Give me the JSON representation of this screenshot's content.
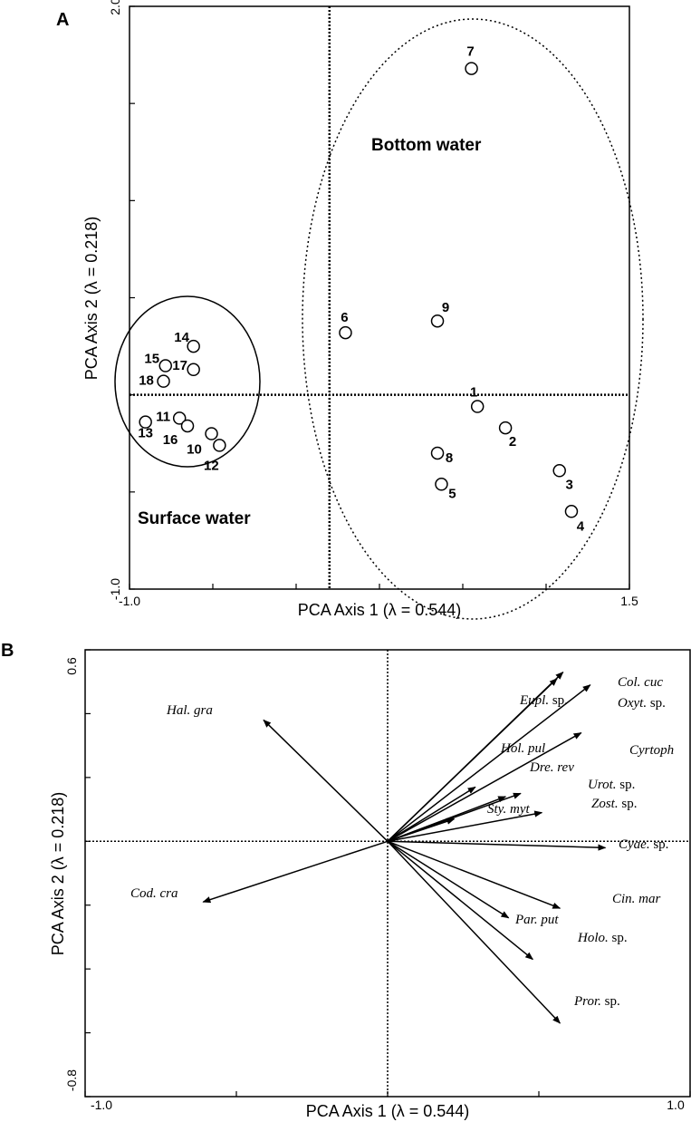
{
  "chart_data": [
    {
      "panel": "A",
      "type": "scatter",
      "xlabel": "PCA Axis 1 (λ = 0.544)",
      "ylabel": "PCA Axis 2 (λ = 0.218)",
      "xlim": [
        -1.0,
        1.5
      ],
      "ylim": [
        -1.0,
        2.0
      ],
      "x_tick_labels": [
        {
          "value": -1.0,
          "label": "-1.0"
        },
        {
          "value": 1.5,
          "label": "1.5"
        }
      ],
      "y_tick_labels": [
        {
          "value": 2.0,
          "label": "2.0"
        },
        {
          "value": -1.0,
          "label": "-1.0"
        }
      ],
      "points": [
        {
          "label": "1",
          "x": 0.74,
          "y": -0.06
        },
        {
          "label": "2",
          "x": 0.88,
          "y": -0.17
        },
        {
          "label": "3",
          "x": 1.15,
          "y": -0.39
        },
        {
          "label": "4",
          "x": 1.21,
          "y": -0.6
        },
        {
          "label": "5",
          "x": 0.56,
          "y": -0.46
        },
        {
          "label": "6",
          "x": 0.08,
          "y": 0.32
        },
        {
          "label": "7",
          "x": 0.71,
          "y": 1.68
        },
        {
          "label": "8",
          "x": 0.54,
          "y": -0.3
        },
        {
          "label": "9",
          "x": 0.54,
          "y": 0.38
        },
        {
          "label": "10",
          "x": -0.59,
          "y": -0.2
        },
        {
          "label": "11",
          "x": -0.75,
          "y": -0.12
        },
        {
          "label": "12",
          "x": -0.55,
          "y": -0.26
        },
        {
          "label": "13",
          "x": -0.92,
          "y": -0.14
        },
        {
          "label": "14",
          "x": -0.68,
          "y": 0.25
        },
        {
          "label": "15",
          "x": -0.82,
          "y": 0.15
        },
        {
          "label": "16",
          "x": -0.71,
          "y": -0.16
        },
        {
          "label": "17",
          "x": -0.68,
          "y": 0.13
        },
        {
          "label": "18",
          "x": -0.83,
          "y": 0.07
        }
      ],
      "groups": [
        {
          "label": "Bottom water",
          "members": [
            "1",
            "2",
            "3",
            "4",
            "5",
            "6",
            "7",
            "8",
            "9"
          ],
          "outline": "dotted ellipse"
        },
        {
          "label": "Surface water",
          "members": [
            "10",
            "11",
            "12",
            "13",
            "14",
            "15",
            "16",
            "17",
            "18"
          ],
          "outline": "solid ellipse"
        }
      ]
    },
    {
      "panel": "B",
      "type": "biplot",
      "xlabel": "PCA Axis 1 (λ = 0.544)",
      "ylabel": "PCA Axis 2 (λ = 0.218)",
      "xlim": [
        -1.0,
        1.0
      ],
      "ylim": [
        -0.8,
        0.6
      ],
      "x_tick_labels": [
        {
          "value": -1.0,
          "label": "-1.0"
        },
        {
          "value": 1.0,
          "label": "1.0"
        }
      ],
      "y_tick_labels": [
        {
          "value": 0.6,
          "label": "0.6"
        },
        {
          "value": -0.8,
          "label": "-0.8"
        }
      ],
      "vectors": [
        {
          "genus": "Col. cuc",
          "suffix": "",
          "x": 0.58,
          "y": 0.53
        },
        {
          "genus": "Oxyt.",
          "suffix": " sp.",
          "x": 0.67,
          "y": 0.49
        },
        {
          "genus": "Eupl.",
          "suffix": " sp.",
          "x": 0.56,
          "y": 0.51
        },
        {
          "genus": "Cyrtoph",
          "suffix": "",
          "x": 0.64,
          "y": 0.34
        },
        {
          "genus": "Hol. pul",
          "suffix": "",
          "x": 0.29,
          "y": 0.17
        },
        {
          "genus": "Dre. rev",
          "suffix": "",
          "x": 0.39,
          "y": 0.14
        },
        {
          "genus": "Urot.",
          "suffix": " sp.",
          "x": 0.44,
          "y": 0.15
        },
        {
          "genus": "Zost.",
          "suffix": " sp.",
          "x": 0.51,
          "y": 0.09
        },
        {
          "genus": "Sty. myt",
          "suffix": "",
          "x": 0.22,
          "y": 0.07
        },
        {
          "genus": "Cyae.",
          "suffix": " sp.",
          "x": 0.72,
          "y": -0.02
        },
        {
          "genus": "Cin. mar",
          "suffix": "",
          "x": 0.57,
          "y": -0.21
        },
        {
          "genus": "Par. put",
          "suffix": "",
          "x": 0.4,
          "y": -0.24
        },
        {
          "genus": "Holo.",
          "suffix": " sp.",
          "x": 0.48,
          "y": -0.37
        },
        {
          "genus": "Pror.",
          "suffix": " sp.",
          "x": 0.57,
          "y": -0.57
        },
        {
          "genus": "Hal. gra",
          "suffix": "",
          "x": -0.41,
          "y": 0.38
        },
        {
          "genus": "Cod. cra",
          "suffix": "",
          "x": -0.61,
          "y": -0.19
        }
      ]
    }
  ]
}
